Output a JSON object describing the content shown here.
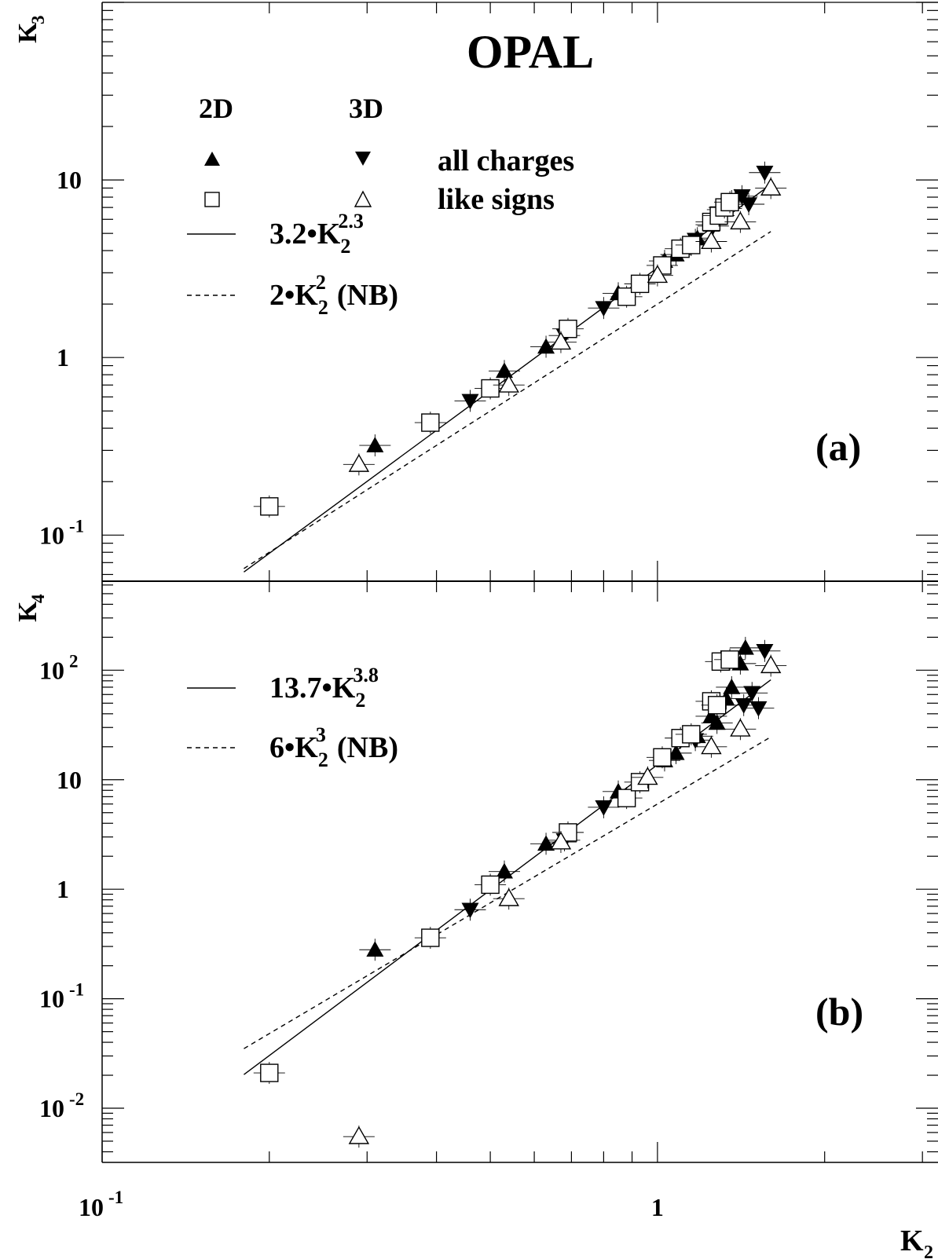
{
  "figure": {
    "title": "OPAL",
    "x_label_base": "K",
    "x_label_sub": "2",
    "x_ticks": [
      {
        "value": 0.1,
        "base": "10",
        "exp": "-1"
      },
      {
        "value": 1,
        "base": "1",
        "exp": ""
      }
    ],
    "legend_headers": {
      "col_2d": "2D",
      "col_3d": "3D"
    },
    "legend_rows": {
      "all_charges": "all charges",
      "like_signs": "like signs"
    }
  },
  "chart_data": [
    {
      "type": "scatter",
      "panel_label": "(a)",
      "ylabel_base": "K",
      "ylabel_sub": "3",
      "xscale": "log",
      "yscale": "log",
      "xlim": [
        0.1,
        3.2
      ],
      "ylim": [
        0.055,
        100
      ],
      "y_ticks": [
        {
          "value": 0.1,
          "base": "10",
          "exp": "-1"
        },
        {
          "value": 1,
          "base": "1",
          "exp": ""
        },
        {
          "value": 10,
          "base": "10",
          "exp": ""
        }
      ],
      "fits": [
        {
          "style": "solid",
          "coef": 3.2,
          "power": 2.3,
          "x_range": [
            0.18,
            1.6
          ],
          "label_prefix": "3.2•K",
          "label_sub": "2",
          "label_sup": "2.3",
          "label_suffix": ""
        },
        {
          "style": "dashed",
          "coef": 2,
          "power": 2,
          "x_range": [
            0.18,
            1.6
          ],
          "label_prefix": "2•K",
          "label_sub": "2",
          "label_sup": "2",
          "label_suffix": "(NB)"
        }
      ],
      "series": [
        {
          "name": "2D all charges",
          "marker": "triangle-up-filled",
          "points": [
            [
              0.31,
              0.32
            ],
            [
              0.53,
              0.84
            ],
            [
              0.63,
              1.15
            ],
            [
              0.85,
              2.3
            ],
            [
              1.03,
              3.5
            ],
            [
              1.08,
              3.8
            ],
            [
              1.18,
              4.7
            ],
            [
              1.25,
              5.6
            ],
            [
              1.31,
              6.8
            ],
            [
              1.36,
              7.6
            ]
          ]
        },
        {
          "name": "3D all charges",
          "marker": "triangle-down-filled",
          "points": [
            [
              0.46,
              0.57
            ],
            [
              0.68,
              1.33
            ],
            [
              0.8,
              1.9
            ],
            [
              1.17,
              4.6
            ],
            [
              1.26,
              5.5
            ],
            [
              1.33,
              6.9
            ],
            [
              1.38,
              7.7
            ],
            [
              1.42,
              8.1
            ],
            [
              1.46,
              7.3
            ],
            [
              1.56,
              11
            ]
          ]
        },
        {
          "name": "2D like signs",
          "marker": "square-open",
          "points": [
            [
              0.2,
              0.145
            ],
            [
              0.39,
              0.43
            ],
            [
              0.5,
              0.67
            ],
            [
              0.69,
              1.45
            ],
            [
              0.88,
              2.2
            ],
            [
              0.93,
              2.6
            ],
            [
              1.02,
              3.3
            ],
            [
              1.1,
              4.1
            ],
            [
              1.15,
              4.3
            ],
            [
              1.25,
              5.8
            ],
            [
              1.29,
              6.3
            ],
            [
              1.32,
              7.0
            ],
            [
              1.35,
              7.5
            ]
          ]
        },
        {
          "name": "3D like signs",
          "marker": "triangle-open",
          "points": [
            [
              0.29,
              0.25
            ],
            [
              0.54,
              0.7
            ],
            [
              0.67,
              1.22
            ],
            [
              1.0,
              2.9
            ],
            [
              1.25,
              4.5
            ],
            [
              1.41,
              5.8
            ],
            [
              1.6,
              9.0
            ]
          ]
        }
      ]
    },
    {
      "type": "scatter",
      "panel_label": "(b)",
      "ylabel_base": "K",
      "ylabel_sub": "4",
      "xscale": "log",
      "yscale": "log",
      "xlim": [
        0.1,
        3.2
      ],
      "ylim": [
        0.0032,
        650
      ],
      "y_ticks": [
        {
          "value": 0.01,
          "base": "10",
          "exp": "-2"
        },
        {
          "value": 0.1,
          "base": "10",
          "exp": "-1"
        },
        {
          "value": 1,
          "base": "1",
          "exp": ""
        },
        {
          "value": 10,
          "base": "10",
          "exp": ""
        },
        {
          "value": 100,
          "base": "10",
          "exp": "2"
        }
      ],
      "fits": [
        {
          "style": "solid",
          "coef": 13.7,
          "power": 3.8,
          "x_range": [
            0.18,
            1.6
          ],
          "label_prefix": "13.7•K",
          "label_sub": "2",
          "label_sup": "3.8",
          "label_suffix": ""
        },
        {
          "style": "dashed",
          "coef": 6,
          "power": 3,
          "x_range": [
            0.18,
            1.6
          ],
          "label_prefix": "6•K",
          "label_sub": "2",
          "label_sup": "3",
          "label_suffix": "(NB)"
        }
      ],
      "series": [
        {
          "name": "2D all charges",
          "marker": "triangle-up-filled",
          "points": [
            [
              0.31,
              0.28
            ],
            [
              0.53,
              1.45
            ],
            [
              0.63,
              2.6
            ],
            [
              0.85,
              7.8
            ],
            [
              1.03,
              15
            ],
            [
              1.08,
              17.5
            ],
            [
              1.18,
              25
            ],
            [
              1.25,
              38
            ],
            [
              1.28,
              33
            ],
            [
              1.33,
              55
            ],
            [
              1.36,
              70
            ],
            [
              1.41,
              115
            ],
            [
              1.44,
              160
            ]
          ]
        },
        {
          "name": "3D all charges",
          "marker": "triangle-down-filled",
          "points": [
            [
              0.46,
              0.65
            ],
            [
              0.68,
              2.8
            ],
            [
              0.8,
              5.6
            ],
            [
              1.17,
              23
            ],
            [
              1.43,
              48
            ],
            [
              1.48,
              62
            ],
            [
              1.52,
              45
            ],
            [
              1.56,
              150
            ]
          ]
        },
        {
          "name": "2D like signs",
          "marker": "square-open",
          "points": [
            [
              0.2,
              0.021
            ],
            [
              0.39,
              0.36
            ],
            [
              0.5,
              1.1
            ],
            [
              0.69,
              3.3
            ],
            [
              0.88,
              6.8
            ],
            [
              0.93,
              9.5
            ],
            [
              1.02,
              16
            ],
            [
              1.1,
              24
            ],
            [
              1.15,
              26
            ],
            [
              1.25,
              52
            ],
            [
              1.28,
              48
            ],
            [
              1.3,
              120
            ],
            [
              1.35,
              125
            ]
          ]
        },
        {
          "name": "3D like signs",
          "marker": "triangle-open",
          "points": [
            [
              0.29,
              0.0055
            ],
            [
              0.54,
              0.82
            ],
            [
              0.67,
              2.7
            ],
            [
              0.96,
              10.5
            ],
            [
              1.25,
              20
            ],
            [
              1.41,
              29
            ],
            [
              1.6,
              110
            ]
          ]
        }
      ]
    }
  ]
}
